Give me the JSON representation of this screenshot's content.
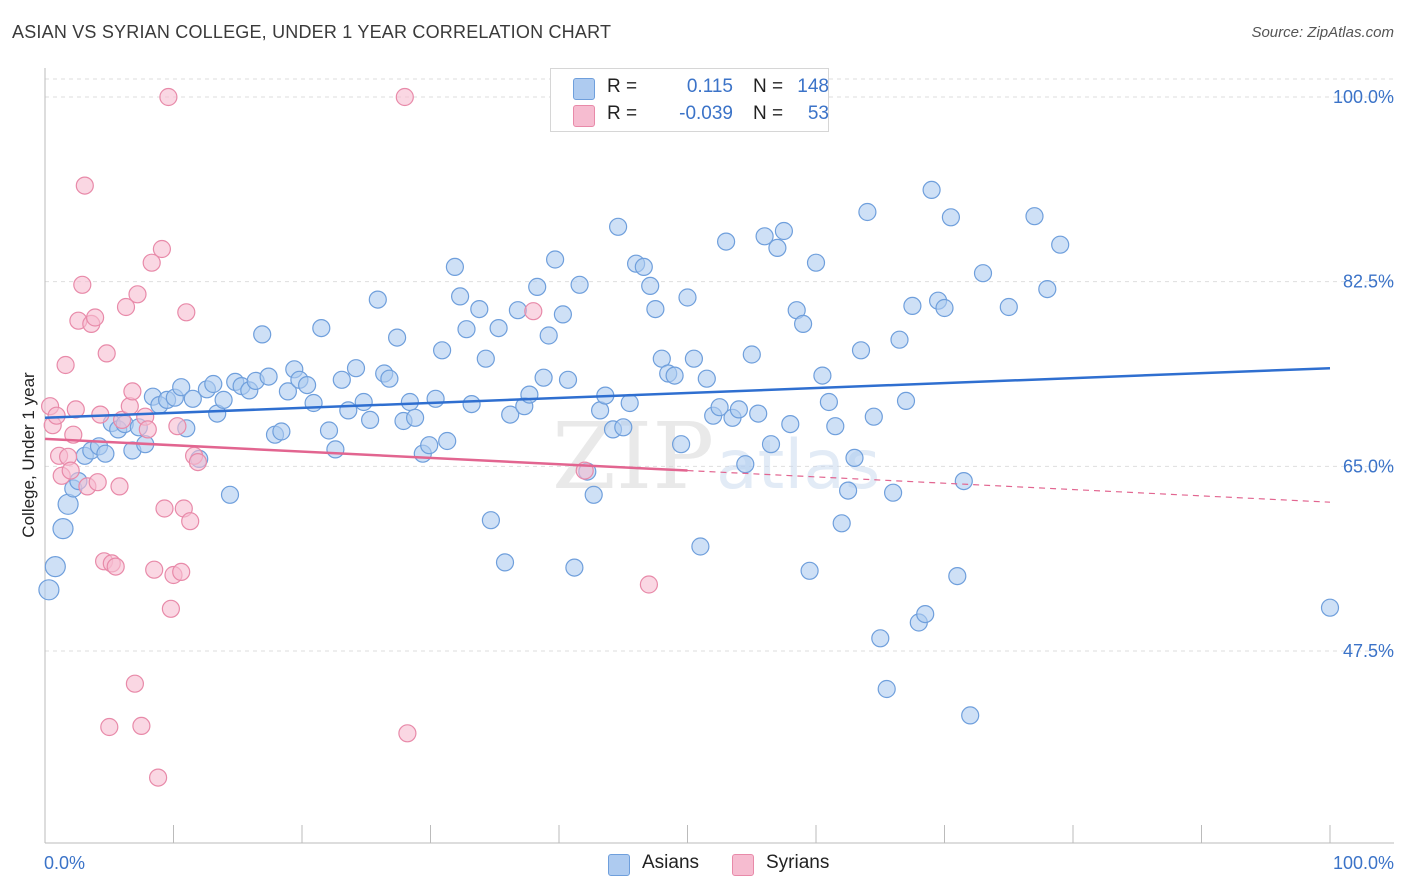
{
  "title": "ASIAN VS SYRIAN COLLEGE, UNDER 1 YEAR CORRELATION CHART",
  "source": "Source: ZipAtlas.com",
  "watermark": {
    "zip": "ZIP",
    "atlas": "atlas"
  },
  "legend": {
    "rows": [
      {
        "r_label": "R =",
        "r_value": "0.115",
        "n_label": "N =",
        "n_value": "148",
        "color": "#aecbf0",
        "border": "#6f9fdc"
      },
      {
        "r_label": "R =",
        "r_value": "-0.039",
        "n_label": "N =",
        "n_value": "53",
        "color": "#f6bcd0",
        "border": "#e88aa9"
      }
    ]
  },
  "bottom_legend": [
    {
      "label": "Asians",
      "color": "#aecbf0",
      "border": "#6f9fdc"
    },
    {
      "label": "Syrians",
      "color": "#f6bcd0",
      "border": "#e88aa9"
    }
  ],
  "chart_data": {
    "type": "scatter",
    "title": "ASIAN VS SYRIAN COLLEGE, UNDER 1 YEAR CORRELATION CHART",
    "xlabel": "",
    "ylabel": "College, Under 1 year",
    "xlim": [
      0,
      100
    ],
    "ylim": [
      31,
      102
    ],
    "x_tick_labels": [
      "0.0%",
      "100.0%"
    ],
    "y_ticks": [
      {
        "value": 47.5,
        "label": "47.5%"
      },
      {
        "value": 65.0,
        "label": "65.0%"
      },
      {
        "value": 82.5,
        "label": "82.5%"
      },
      {
        "value": 100.0,
        "label": "100.0%"
      }
    ],
    "grid": true,
    "series": [
      {
        "name": "Asians",
        "color": "#6f9fdc",
        "fill": "#aecbf0",
        "trend": {
          "x": [
            0,
            100
          ],
          "y": [
            69.6,
            74.3
          ],
          "color": "#2f6fd0"
        },
        "points": [
          [
            0.3,
            53.3
          ],
          [
            0.8,
            55.5
          ],
          [
            1.4,
            59.1
          ],
          [
            1.8,
            61.4
          ],
          [
            2.2,
            62.9
          ],
          [
            2.6,
            63.6
          ],
          [
            3.1,
            66.0
          ],
          [
            3.6,
            66.5
          ],
          [
            4.2,
            66.9
          ],
          [
            4.7,
            66.2
          ],
          [
            5.2,
            69.1
          ],
          [
            5.7,
            68.5
          ],
          [
            6.2,
            69.0
          ],
          [
            6.8,
            66.5
          ],
          [
            7.3,
            68.7
          ],
          [
            7.8,
            67.1
          ],
          [
            8.4,
            71.6
          ],
          [
            8.9,
            70.8
          ],
          [
            9.5,
            71.3
          ],
          [
            10.1,
            71.5
          ],
          [
            10.6,
            72.5
          ],
          [
            11.0,
            68.6
          ],
          [
            11.5,
            71.4
          ],
          [
            12.0,
            65.7
          ],
          [
            12.6,
            72.3
          ],
          [
            13.1,
            72.8
          ],
          [
            13.4,
            70.0
          ],
          [
            13.9,
            71.3
          ],
          [
            14.4,
            62.3
          ],
          [
            14.8,
            73.0
          ],
          [
            15.3,
            72.6
          ],
          [
            15.9,
            72.2
          ],
          [
            16.4,
            73.1
          ],
          [
            16.9,
            77.5
          ],
          [
            17.4,
            73.5
          ],
          [
            17.9,
            68.0
          ],
          [
            18.4,
            68.3
          ],
          [
            18.9,
            72.1
          ],
          [
            19.4,
            74.2
          ],
          [
            19.8,
            73.2
          ],
          [
            20.4,
            72.7
          ],
          [
            20.9,
            71.0
          ],
          [
            21.5,
            78.1
          ],
          [
            22.1,
            68.4
          ],
          [
            22.6,
            66.6
          ],
          [
            23.1,
            73.2
          ],
          [
            23.6,
            70.3
          ],
          [
            24.2,
            74.3
          ],
          [
            24.8,
            71.1
          ],
          [
            25.3,
            69.4
          ],
          [
            25.9,
            80.8
          ],
          [
            26.4,
            73.8
          ],
          [
            26.8,
            73.3
          ],
          [
            27.4,
            77.2
          ],
          [
            27.9,
            69.3
          ],
          [
            28.4,
            71.1
          ],
          [
            28.8,
            69.6
          ],
          [
            29.4,
            66.2
          ],
          [
            29.9,
            67.0
          ],
          [
            30.4,
            71.4
          ],
          [
            30.9,
            76.0
          ],
          [
            31.3,
            67.4
          ],
          [
            31.9,
            83.9
          ],
          [
            32.3,
            81.1
          ],
          [
            32.8,
            78.0
          ],
          [
            33.2,
            70.9
          ],
          [
            33.8,
            79.9
          ],
          [
            34.3,
            75.2
          ],
          [
            34.7,
            59.9
          ],
          [
            35.3,
            78.1
          ],
          [
            35.8,
            55.9
          ],
          [
            36.2,
            69.9
          ],
          [
            36.8,
            79.8
          ],
          [
            37.3,
            70.7
          ],
          [
            37.7,
            71.8
          ],
          [
            38.3,
            82.0
          ],
          [
            38.8,
            73.4
          ],
          [
            39.2,
            77.4
          ],
          [
            39.7,
            84.6
          ],
          [
            40.3,
            79.4
          ],
          [
            40.7,
            73.2
          ],
          [
            41.2,
            55.4
          ],
          [
            41.6,
            82.2
          ],
          [
            42.2,
            64.5
          ],
          [
            42.7,
            62.3
          ],
          [
            43.2,
            70.3
          ],
          [
            43.6,
            71.7
          ],
          [
            44.2,
            68.5
          ],
          [
            44.6,
            87.7
          ],
          [
            45.0,
            68.7
          ],
          [
            45.5,
            71.0
          ],
          [
            46.0,
            84.2
          ],
          [
            46.6,
            83.9
          ],
          [
            47.1,
            82.1
          ],
          [
            47.5,
            79.9
          ],
          [
            48.0,
            75.2
          ],
          [
            48.5,
            73.8
          ],
          [
            49.0,
            73.6
          ],
          [
            49.5,
            67.1
          ],
          [
            50.0,
            81.0
          ],
          [
            50.5,
            75.2
          ],
          [
            51.0,
            57.4
          ],
          [
            51.5,
            73.3
          ],
          [
            52.0,
            69.8
          ],
          [
            52.5,
            70.6
          ],
          [
            53.0,
            86.3
          ],
          [
            53.5,
            69.6
          ],
          [
            54.0,
            70.4
          ],
          [
            54.5,
            65.2
          ],
          [
            55.0,
            75.6
          ],
          [
            55.5,
            70.0
          ],
          [
            56.0,
            86.8
          ],
          [
            56.5,
            67.1
          ],
          [
            57.0,
            85.7
          ],
          [
            57.5,
            87.3
          ],
          [
            58.0,
            69.0
          ],
          [
            58.5,
            79.8
          ],
          [
            59.0,
            78.5
          ],
          [
            59.5,
            55.1
          ],
          [
            60.0,
            84.3
          ],
          [
            60.5,
            73.6
          ],
          [
            61.0,
            71.1
          ],
          [
            61.5,
            68.8
          ],
          [
            62.0,
            59.6
          ],
          [
            62.5,
            62.7
          ],
          [
            63.0,
            65.8
          ],
          [
            63.5,
            76.0
          ],
          [
            64.0,
            89.1
          ],
          [
            64.5,
            69.7
          ],
          [
            65.0,
            48.7
          ],
          [
            65.5,
            43.9
          ],
          [
            66.0,
            62.5
          ],
          [
            66.5,
            77.0
          ],
          [
            67.0,
            71.2
          ],
          [
            67.5,
            80.2
          ],
          [
            68.0,
            50.2
          ],
          [
            68.5,
            51.0
          ],
          [
            69.0,
            91.2
          ],
          [
            69.5,
            80.7
          ],
          [
            70.0,
            80.0
          ],
          [
            70.5,
            88.6
          ],
          [
            71.0,
            54.6
          ],
          [
            71.5,
            63.6
          ],
          [
            72.0,
            41.4
          ],
          [
            73.0,
            83.3
          ],
          [
            75.0,
            80.1
          ],
          [
            77.0,
            88.7
          ],
          [
            78.0,
            81.8
          ],
          [
            79.0,
            86.0
          ],
          [
            100.0,
            51.6
          ]
        ]
      },
      {
        "name": "Syrians",
        "color": "#e88aa9",
        "fill": "#f6bcd0",
        "trend": {
          "x": [
            0,
            50
          ],
          "y": [
            67.6,
            64.6
          ],
          "dashed_to": [
            100,
            61.6
          ],
          "color": "#e26590"
        },
        "points": [
          [
            0.4,
            70.7
          ],
          [
            0.6,
            68.9
          ],
          [
            0.9,
            69.8
          ],
          [
            1.1,
            66.0
          ],
          [
            1.3,
            64.1
          ],
          [
            1.6,
            74.6
          ],
          [
            1.8,
            65.9
          ],
          [
            2.0,
            64.6
          ],
          [
            2.2,
            68.0
          ],
          [
            2.4,
            70.4
          ],
          [
            2.6,
            78.8
          ],
          [
            2.9,
            82.2
          ],
          [
            3.1,
            91.6
          ],
          [
            3.3,
            63.1
          ],
          [
            3.6,
            78.5
          ],
          [
            3.9,
            79.1
          ],
          [
            4.1,
            63.5
          ],
          [
            4.3,
            69.9
          ],
          [
            4.6,
            56.0
          ],
          [
            4.8,
            75.7
          ],
          [
            5.0,
            40.3
          ],
          [
            5.2,
            55.8
          ],
          [
            5.5,
            55.5
          ],
          [
            5.8,
            63.1
          ],
          [
            6.0,
            69.4
          ],
          [
            6.3,
            80.1
          ],
          [
            6.6,
            70.7
          ],
          [
            6.8,
            72.1
          ],
          [
            7.0,
            44.4
          ],
          [
            7.2,
            81.3
          ],
          [
            7.5,
            40.4
          ],
          [
            7.8,
            69.7
          ],
          [
            8.0,
            68.5
          ],
          [
            8.3,
            84.3
          ],
          [
            8.5,
            55.2
          ],
          [
            8.8,
            35.5
          ],
          [
            9.1,
            85.6
          ],
          [
            9.3,
            61.0
          ],
          [
            9.6,
            100.0
          ],
          [
            9.8,
            51.5
          ],
          [
            10.0,
            54.7
          ],
          [
            10.3,
            68.8
          ],
          [
            10.6,
            55.0
          ],
          [
            10.8,
            61.0
          ],
          [
            11.0,
            79.6
          ],
          [
            11.3,
            59.8
          ],
          [
            11.6,
            66.0
          ],
          [
            11.9,
            65.4
          ],
          [
            28.0,
            100.0
          ],
          [
            28.2,
            39.7
          ],
          [
            38.0,
            79.7
          ],
          [
            42.0,
            64.6
          ],
          [
            47.0,
            53.8
          ]
        ]
      }
    ]
  }
}
